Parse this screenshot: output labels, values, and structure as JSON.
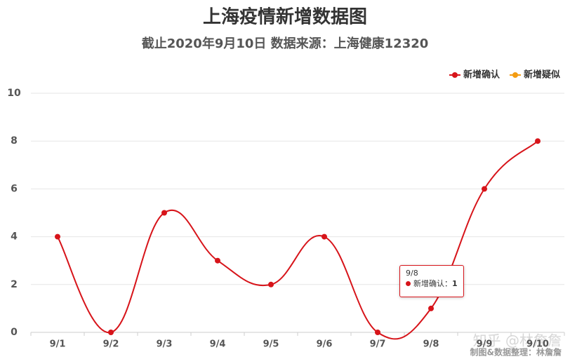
{
  "chart_data": {
    "type": "line",
    "title": "上海疫情新增数据图",
    "subtitle": "截止2020年9月10日 数据来源：上海健康12320",
    "categories": [
      "9/1",
      "9/2",
      "9/3",
      "9/4",
      "9/5",
      "9/6",
      "9/7",
      "9/8",
      "9/9",
      "9/10"
    ],
    "series": [
      {
        "name": "新增确认",
        "color": "#d7141a",
        "values": [
          4,
          0,
          5,
          3,
          2,
          4,
          0,
          1,
          6,
          8
        ]
      },
      {
        "name": "新增疑似",
        "color": "#f39c12",
        "values": [
          null,
          null,
          null,
          null,
          null,
          null,
          null,
          null,
          null,
          null
        ]
      }
    ],
    "ylim": [
      0,
      10
    ],
    "yticks": [
      0,
      2,
      4,
      6,
      8,
      10
    ],
    "grid": true,
    "smooth": true,
    "legend": "top-right",
    "tooltip": {
      "title": "9/8",
      "series": "新增确认",
      "value": 1
    },
    "annotations": [
      "知乎 @林詹詹",
      "制图&数据整理：林詹詹"
    ]
  }
}
